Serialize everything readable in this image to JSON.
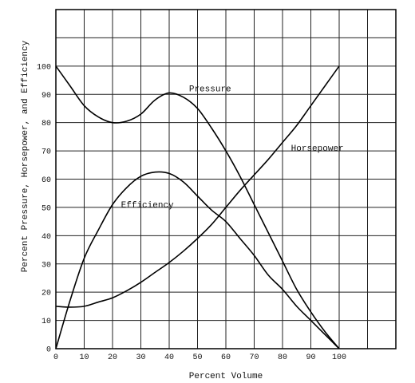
{
  "chart_data": {
    "type": "line",
    "title": "",
    "xlabel": "Percent Volume",
    "ylabel": "Percent Pressure, Horsepower, and Efficiency",
    "xlim": [
      0,
      120
    ],
    "ylim": [
      0,
      120
    ],
    "x_ticks": [
      0,
      10,
      20,
      30,
      40,
      50,
      60,
      70,
      80,
      90,
      100
    ],
    "y_ticks": [
      0,
      10,
      20,
      30,
      40,
      50,
      60,
      70,
      80,
      90,
      100
    ],
    "grid": true,
    "legend": "none",
    "series": [
      {
        "name": "Pressure",
        "x": [
          0,
          5,
          10,
          15,
          20,
          25,
          30,
          35,
          40,
          45,
          50,
          55,
          60,
          65,
          70,
          75,
          80,
          85,
          90,
          95,
          100
        ],
        "y": [
          100,
          93,
          86,
          82,
          80,
          80.5,
          83,
          88,
          90.5,
          89,
          85,
          78,
          70,
          61,
          51,
          41,
          31,
          21,
          13,
          6,
          0
        ],
        "label_at": [
          47,
          91
        ]
      },
      {
        "name": "Horsepower",
        "x": [
          0,
          5,
          10,
          15,
          20,
          25,
          30,
          35,
          40,
          45,
          50,
          55,
          60,
          65,
          70,
          75,
          80,
          85,
          90,
          95,
          100
        ],
        "y": [
          15,
          14.7,
          15,
          16.5,
          18,
          20.5,
          23.5,
          27,
          30.5,
          34.5,
          39,
          44,
          50,
          56,
          61.5,
          67,
          73,
          79,
          86,
          93,
          100
        ],
        "label_at": [
          83,
          70
        ]
      },
      {
        "name": "Efficiency",
        "x": [
          0,
          5,
          10,
          15,
          20,
          25,
          30,
          35,
          40,
          45,
          50,
          55,
          60,
          65,
          70,
          75,
          80,
          85,
          90,
          95,
          100
        ],
        "y": [
          0,
          17,
          32,
          42,
          51,
          57,
          61,
          62.5,
          62,
          59,
          54,
          49,
          45,
          39,
          33,
          26,
          21,
          15,
          10,
          5,
          0
        ],
        "label_at": [
          23,
          50
        ]
      }
    ]
  }
}
